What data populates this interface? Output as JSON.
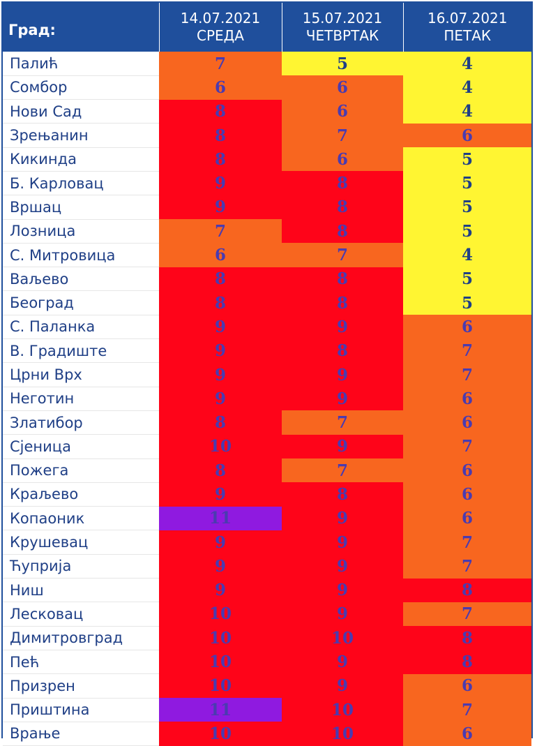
{
  "header": {
    "city_label": "Град:",
    "days": [
      {
        "date": "14.07.2021",
        "weekday": "СРЕДА"
      },
      {
        "date": "15.07.2021",
        "weekday": "ЧЕТВРТАК"
      },
      {
        "date": "16.07.2021",
        "weekday": "ПЕТАК"
      }
    ]
  },
  "colors": {
    "header_bg": "#1f4f9c",
    "level_4_5": "#fff532",
    "level_6_7": "#f8661f",
    "level_8_10": "#fe0419",
    "level_11": "#8f1ae0",
    "value_text": "#4a3bb0",
    "value_text_yellow": "#1f3f86"
  },
  "rows": [
    {
      "city": "Палић",
      "values": [
        "7",
        "5",
        "4"
      ]
    },
    {
      "city": "Сомбор",
      "values": [
        "6",
        "6",
        "4"
      ]
    },
    {
      "city": "Нови Сад",
      "values": [
        "8",
        "6",
        "4"
      ]
    },
    {
      "city": "Зрењанин",
      "values": [
        "8",
        "7",
        "6"
      ]
    },
    {
      "city": "Кикинда",
      "values": [
        "8",
        "6",
        "5"
      ]
    },
    {
      "city": "Б. Карловац",
      "values": [
        "9",
        "8",
        "5"
      ]
    },
    {
      "city": "Вршац",
      "values": [
        "9",
        "8",
        "5"
      ]
    },
    {
      "city": "Лозница",
      "values": [
        "7",
        "8",
        "5"
      ]
    },
    {
      "city": "С. Митровица",
      "values": [
        "6",
        "7",
        "4"
      ]
    },
    {
      "city": "Ваљево",
      "values": [
        "8",
        "8",
        "5"
      ]
    },
    {
      "city": "Београд",
      "values": [
        "8",
        "8",
        "5"
      ]
    },
    {
      "city": "С. Паланка",
      "values": [
        "9",
        "9",
        "6"
      ]
    },
    {
      "city": "В. Градиште",
      "values": [
        "9",
        "8",
        "7"
      ]
    },
    {
      "city": "Црни Врх",
      "values": [
        "9",
        "9",
        "7"
      ]
    },
    {
      "city": "Неготин",
      "values": [
        "9",
        "9",
        "6"
      ]
    },
    {
      "city": "Златибор",
      "values": [
        "8",
        "7",
        "6"
      ]
    },
    {
      "city": "Сјеница",
      "values": [
        "10",
        "9",
        "7"
      ]
    },
    {
      "city": "Пожега",
      "values": [
        "8",
        "7",
        "6"
      ]
    },
    {
      "city": "Краљево",
      "values": [
        "9",
        "8",
        "6"
      ]
    },
    {
      "city": "Копаоник",
      "values": [
        "11",
        "9",
        "6"
      ]
    },
    {
      "city": "Крушевац",
      "values": [
        "9",
        "9",
        "7"
      ]
    },
    {
      "city": "Ћуприја",
      "values": [
        "9",
        "9",
        "7"
      ]
    },
    {
      "city": "Ниш",
      "values": [
        "9",
        "9",
        "8"
      ]
    },
    {
      "city": "Лесковац",
      "values": [
        "10",
        "9",
        "7"
      ]
    },
    {
      "city": "Димитровград",
      "values": [
        "10",
        "10",
        "8"
      ]
    },
    {
      "city": "Пећ",
      "values": [
        "10",
        "9",
        "8"
      ]
    },
    {
      "city": "Призрен",
      "values": [
        "10",
        "9",
        "6"
      ]
    },
    {
      "city": "Приштина",
      "values": [
        "11",
        "10",
        "7"
      ]
    },
    {
      "city": "Врање",
      "values": [
        "10",
        "10",
        "6"
      ]
    }
  ]
}
